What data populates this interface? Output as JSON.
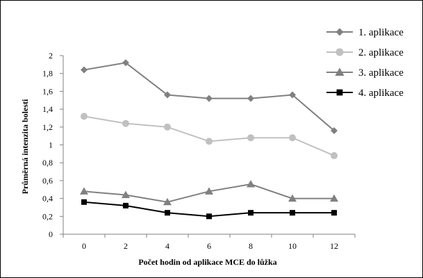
{
  "chart_data": {
    "type": "line",
    "title": "",
    "xlabel": "Počet hodin od aplikace MCE do lůžka",
    "ylabel": "Průměrná intenzita bolesti",
    "x": [
      0,
      2,
      4,
      6,
      8,
      10,
      12
    ],
    "x_tick_labels": [
      "0",
      "2",
      "4",
      "6",
      "8",
      "10",
      "12"
    ],
    "ylim": [
      0,
      2
    ],
    "y_tick_labels": [
      "0",
      "0,2",
      "0,4",
      "0,6",
      "0,8",
      "1",
      "1,2",
      "1,4",
      "1,6",
      "1,8",
      "2"
    ],
    "grid": false,
    "legend_position": "right",
    "series": [
      {
        "name": "1. aplikace",
        "values": [
          1.84,
          1.92,
          1.56,
          1.52,
          1.52,
          1.56,
          1.16
        ],
        "color": "#808080",
        "marker": "diamond"
      },
      {
        "name": "2. aplikace",
        "values": [
          1.32,
          1.24,
          1.2,
          1.04,
          1.08,
          1.08,
          0.88
        ],
        "color": "#c0c0c0",
        "marker": "circle"
      },
      {
        "name": "3. aplikace",
        "values": [
          0.48,
          0.44,
          0.36,
          0.48,
          0.56,
          0.4,
          0.4
        ],
        "color": "#808080",
        "marker": "triangle"
      },
      {
        "name": "4. aplikace",
        "values": [
          0.36,
          0.32,
          0.24,
          0.2,
          0.24,
          0.24,
          0.24
        ],
        "color": "#000000",
        "marker": "square"
      }
    ]
  }
}
